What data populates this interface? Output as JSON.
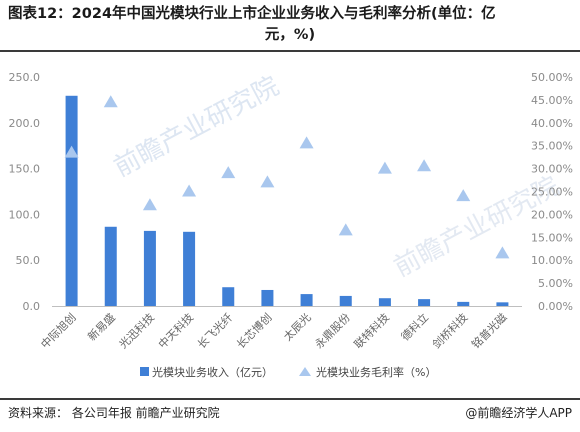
{
  "title_line1": "图表12：2024年中国光模块行业上市企业业务收入与毛利率分析(单位：亿",
  "title_line2": "元，%)",
  "footer": {
    "source": "资料来源： 各公司年报 前瞻产业研究院",
    "brand": "@前瞻经济学人APP"
  },
  "watermark": "前瞻产业研究院",
  "colors": {
    "bar": "#3f7fd6",
    "triangle": "#a9c7ee",
    "axis": "#8a8a8a"
  },
  "chart_data": {
    "type": "bar",
    "categories": [
      "中际旭创",
      "新易盛",
      "光迅科技",
      "中天科技",
      "长飞光纤",
      "长芯博创",
      "太辰光",
      "永鼎股份",
      "联特科技",
      "德科立",
      "剑桥科技",
      "铭普光磁"
    ],
    "series": [
      {
        "name": "光模块业务收入（亿元）",
        "type": "bar",
        "axis": "left",
        "values": [
          229.5,
          86.5,
          82.0,
          81.0,
          20.5,
          17.5,
          13.0,
          11.0,
          8.5,
          7.5,
          4.5,
          4.0
        ]
      },
      {
        "name": "光模块业务毛利率（%）",
        "type": "scatter",
        "axis": "right",
        "marker": "triangle",
        "values": [
          33.5,
          44.5,
          22.0,
          25.0,
          29.0,
          27.0,
          35.5,
          16.5,
          30.0,
          30.5,
          24.0,
          11.5
        ]
      }
    ],
    "ylim_left": [
      0,
      250
    ],
    "yticks_left": [
      "0.0",
      "50.0",
      "100.0",
      "150.0",
      "200.0",
      "250.0"
    ],
    "ylim_right": [
      0,
      50
    ],
    "yticks_right": [
      "0.00%",
      "5.00%",
      "10.00%",
      "15.00%",
      "20.00%",
      "25.00%",
      "30.00%",
      "35.00%",
      "40.00%",
      "45.00%",
      "50.00%"
    ],
    "legend_position": "bottom"
  }
}
